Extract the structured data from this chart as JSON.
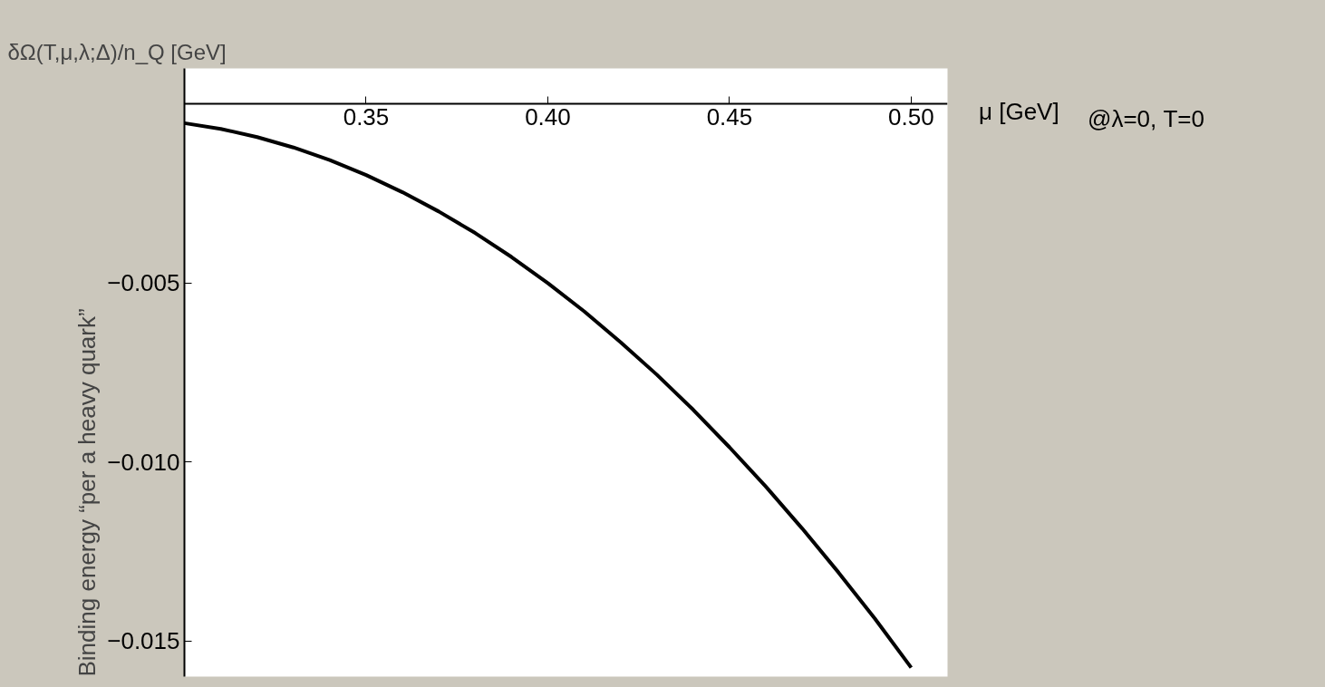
{
  "chart_data": {
    "type": "line",
    "ylabel": "δΩ(T,μ,λ;Δ)/n_Q [GeV]",
    "xlabel": "μ [GeV]",
    "annotations": [
      "Binding energy “per a heavy quark”",
      "@λ=0, T=0"
    ],
    "x": [
      0.3,
      0.31,
      0.32,
      0.33,
      0.34,
      0.35,
      0.36,
      0.37,
      0.38,
      0.39,
      0.4,
      0.41,
      0.42,
      0.43,
      0.44,
      0.45,
      0.46,
      0.47,
      0.48,
      0.49,
      0.5
    ],
    "series": [
      {
        "color": "#000000",
        "values": [
          -0.00053,
          -0.00069,
          -0.00092,
          -0.00121,
          -0.00156,
          -0.00198,
          -0.00246,
          -0.003,
          -0.0036,
          -0.00427,
          -0.005,
          -0.00579,
          -0.00665,
          -0.00756,
          -0.00854,
          -0.00959,
          -0.01069,
          -0.01186,
          -0.01309,
          -0.01438,
          -0.01575
        ]
      }
    ],
    "xlim": [
      0.3,
      0.51
    ],
    "ylim": [
      -0.016,
      0.001
    ],
    "xticks": [
      {
        "value": 0.35,
        "label": "0.35"
      },
      {
        "value": 0.4,
        "label": "0.40"
      },
      {
        "value": 0.45,
        "label": "0.45"
      },
      {
        "value": 0.5,
        "label": "0.50"
      }
    ],
    "yticks": [
      {
        "value": -0.015,
        "label": "−0.015"
      },
      {
        "value": -0.01,
        "label": "−0.010"
      },
      {
        "value": -0.005,
        "label": "−0.005"
      }
    ]
  }
}
